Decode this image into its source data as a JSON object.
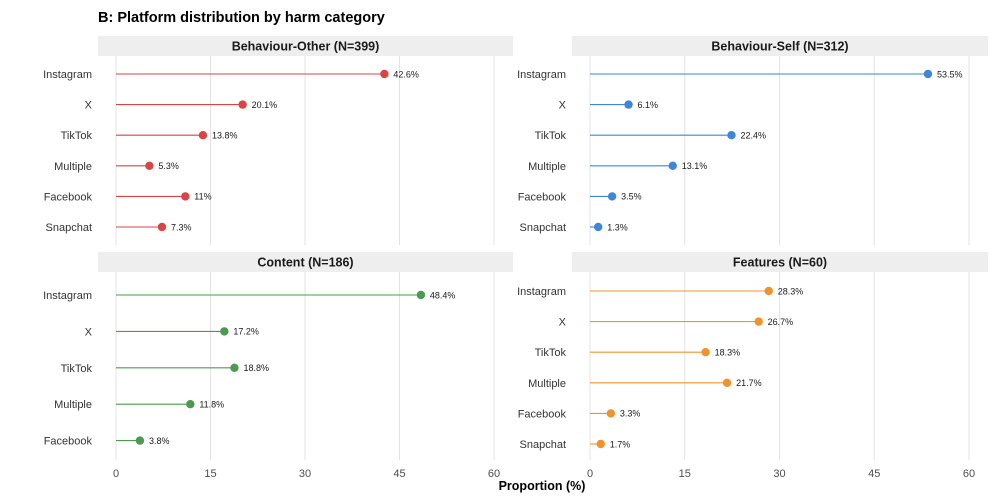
{
  "chart_data": {
    "type": "lollipop",
    "title": "B: Platform distribution by harm category",
    "xlabel": "Proportion (%)",
    "xlim": [
      0,
      60
    ],
    "xticks": [
      0,
      15,
      30,
      45,
      60
    ],
    "xtick_labels": [
      "0",
      "15",
      "30",
      "45",
      "60"
    ],
    "grid": true,
    "panels": [
      {
        "title": "Behaviour-Other (N=399)",
        "color": "#d94545",
        "categories": [
          "Instagram",
          "X",
          "TikTok",
          "Multiple",
          "Facebook",
          "Snapchat"
        ],
        "values": [
          42.6,
          20.1,
          13.8,
          5.3,
          11,
          7.3
        ],
        "labels": [
          "42.6%",
          "20.1%",
          "13.8%",
          "5.3%",
          "11%",
          "7.3%"
        ]
      },
      {
        "title": "Behaviour-Self (N=312)",
        "color": "#3d86d8",
        "categories": [
          "Instagram",
          "X",
          "TikTok",
          "Multiple",
          "Facebook",
          "Snapchat"
        ],
        "values": [
          53.5,
          6.1,
          22.4,
          13.1,
          3.5,
          1.3
        ],
        "labels": [
          "53.5%",
          "6.1%",
          "22.4%",
          "13.1%",
          "3.5%",
          "1.3%"
        ]
      },
      {
        "title": "Content (N=186)",
        "color": "#4a9a4f",
        "categories": [
          "Instagram",
          "X",
          "TikTok",
          "Multiple",
          "Facebook"
        ],
        "values": [
          48.4,
          17.2,
          18.8,
          11.8,
          3.8
        ],
        "labels": [
          "48.4%",
          "17.2%",
          "18.8%",
          "11.8%",
          "3.8%"
        ]
      },
      {
        "title": "Features (N=60)",
        "color": "#f0922e",
        "categories": [
          "Instagram",
          "X",
          "TikTok",
          "Multiple",
          "Facebook",
          "Snapchat"
        ],
        "values": [
          28.3,
          26.7,
          18.3,
          21.7,
          3.3,
          1.7
        ],
        "labels": [
          "28.3%",
          "26.7%",
          "18.3%",
          "21.7%",
          "3.3%",
          "1.7%"
        ]
      }
    ]
  }
}
